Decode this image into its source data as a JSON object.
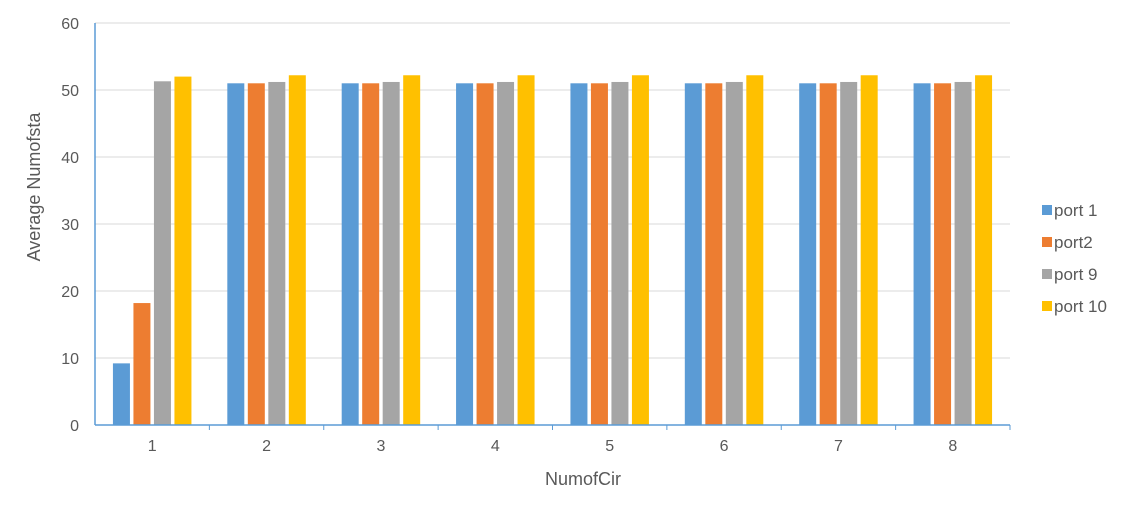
{
  "chart_data": {
    "type": "bar",
    "title": "",
    "xlabel": "NumofCir",
    "ylabel": "Average Numofsta",
    "categories": [
      "1",
      "2",
      "3",
      "4",
      "5",
      "6",
      "7",
      "8"
    ],
    "ylim": [
      0,
      60
    ],
    "yticks": [
      "0",
      "10",
      "20",
      "30",
      "40",
      "50",
      "60"
    ],
    "grid": true,
    "legend_position": "right",
    "series": [
      {
        "name": "port 1",
        "color": "#5B9BD5",
        "values": [
          9.2,
          51.0,
          51.0,
          51.0,
          51.0,
          51.0,
          51.0,
          51.0
        ]
      },
      {
        "name": "port2",
        "color": "#ED7D31",
        "values": [
          18.2,
          51.0,
          51.0,
          51.0,
          51.0,
          51.0,
          51.0,
          51.0
        ]
      },
      {
        "name": "port 9",
        "color": "#A5A5A5",
        "values": [
          51.3,
          51.2,
          51.2,
          51.2,
          51.2,
          51.2,
          51.2,
          51.2
        ]
      },
      {
        "name": "port 10",
        "color": "#FFC000",
        "values": [
          52.0,
          52.2,
          52.2,
          52.2,
          52.2,
          52.2,
          52.2,
          52.2
        ]
      }
    ]
  }
}
